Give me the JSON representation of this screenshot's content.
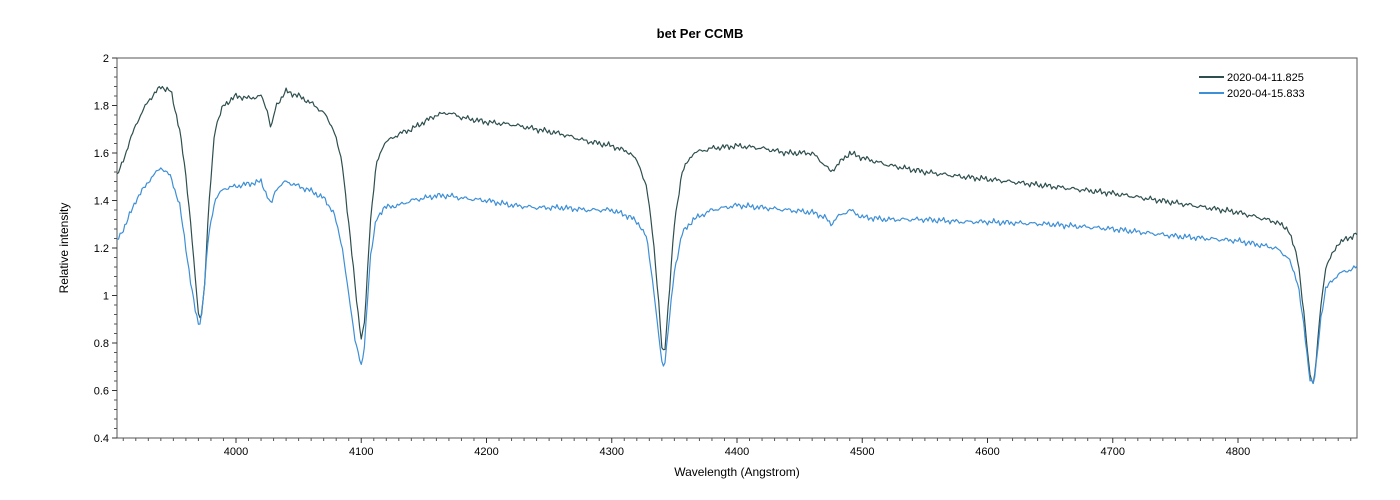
{
  "chart_data": {
    "type": "line",
    "title": "bet Per   CCMB",
    "xlabel": "Wavelength (Angstrom)",
    "ylabel": "Relative intensity",
    "xlim": [
      3905,
      4895
    ],
    "ylim": [
      0.4,
      2.0
    ],
    "x_ticks": [
      4000,
      4100,
      4200,
      4300,
      4400,
      4500,
      4600,
      4700,
      4800
    ],
    "y_ticks": [
      0.4,
      0.6,
      0.8,
      1.0,
      1.2,
      1.4,
      1.6,
      1.8,
      2.0
    ],
    "y_tick_labels": [
      "0.4",
      "0.6",
      "0.8",
      "1",
      "1.2",
      "1.4",
      "1.6",
      "1.8",
      "2"
    ],
    "grid": false,
    "legend_position": "top-right",
    "series": [
      {
        "name": "2020-04-11.825",
        "color": "#2f4f4f",
        "x": [
          3905,
          3912,
          3920,
          3930,
          3940,
          3948,
          3955,
          3960,
          3964,
          3967,
          3970,
          3972,
          3975,
          3978,
          3983,
          3990,
          4000,
          4010,
          4020,
          4025,
          4028,
          4032,
          4040,
          4050,
          4060,
          4070,
          4078,
          4085,
          4090,
          4095,
          4098,
          4100,
          4102,
          4104,
          4107,
          4112,
          4118,
          4130,
          4140,
          4150,
          4160,
          4170,
          4180,
          4200,
          4220,
          4240,
          4260,
          4280,
          4300,
          4315,
          4322,
          4328,
          4333,
          4337,
          4340,
          4342,
          4345,
          4350,
          4356,
          4365,
          4380,
          4400,
          4420,
          4440,
          4460,
          4470,
          4475,
          4480,
          4490,
          4500,
          4520,
          4550,
          4580,
          4600,
          4650,
          4700,
          4750,
          4800,
          4830,
          4840,
          4848,
          4853,
          4857,
          4860,
          4862,
          4866,
          4870,
          4880,
          4895
        ],
        "y": [
          1.5,
          1.6,
          1.72,
          1.82,
          1.88,
          1.86,
          1.7,
          1.5,
          1.3,
          1.1,
          0.92,
          0.9,
          1.05,
          1.35,
          1.7,
          1.8,
          1.84,
          1.83,
          1.84,
          1.78,
          1.7,
          1.8,
          1.86,
          1.84,
          1.81,
          1.77,
          1.7,
          1.55,
          1.3,
          1.05,
          0.9,
          0.82,
          0.85,
          1.0,
          1.3,
          1.55,
          1.64,
          1.68,
          1.7,
          1.73,
          1.76,
          1.77,
          1.75,
          1.73,
          1.72,
          1.7,
          1.68,
          1.65,
          1.63,
          1.6,
          1.55,
          1.45,
          1.25,
          1.0,
          0.78,
          0.75,
          0.95,
          1.3,
          1.52,
          1.6,
          1.62,
          1.63,
          1.62,
          1.6,
          1.6,
          1.55,
          1.52,
          1.55,
          1.6,
          1.58,
          1.55,
          1.52,
          1.5,
          1.49,
          1.46,
          1.43,
          1.39,
          1.35,
          1.31,
          1.28,
          1.15,
          0.9,
          0.68,
          0.63,
          0.7,
          0.95,
          1.12,
          1.22,
          1.26
        ]
      },
      {
        "name": "2020-04-15.833",
        "color": "#3d8fd6",
        "x": [
          3905,
          3912,
          3920,
          3930,
          3940,
          3948,
          3955,
          3960,
          3964,
          3967,
          3970,
          3972,
          3975,
          3978,
          3983,
          3990,
          4000,
          4010,
          4020,
          4025,
          4028,
          4032,
          4040,
          4050,
          4060,
          4070,
          4078,
          4085,
          4090,
          4095,
          4098,
          4100,
          4102,
          4104,
          4107,
          4112,
          4118,
          4130,
          4140,
          4150,
          4160,
          4170,
          4180,
          4200,
          4220,
          4240,
          4260,
          4280,
          4300,
          4315,
          4322,
          4328,
          4333,
          4337,
          4340,
          4342,
          4345,
          4350,
          4356,
          4365,
          4380,
          4400,
          4420,
          4440,
          4460,
          4470,
          4475,
          4480,
          4490,
          4500,
          4520,
          4550,
          4580,
          4600,
          4650,
          4700,
          4750,
          4800,
          4830,
          4840,
          4848,
          4853,
          4857,
          4860,
          4862,
          4866,
          4870,
          4880,
          4895
        ],
        "y": [
          1.23,
          1.3,
          1.4,
          1.48,
          1.54,
          1.5,
          1.38,
          1.2,
          1.05,
          0.95,
          0.88,
          0.9,
          1.05,
          1.25,
          1.4,
          1.45,
          1.46,
          1.47,
          1.48,
          1.42,
          1.38,
          1.45,
          1.48,
          1.46,
          1.44,
          1.41,
          1.35,
          1.2,
          1.0,
          0.82,
          0.75,
          0.7,
          0.75,
          0.9,
          1.15,
          1.32,
          1.37,
          1.38,
          1.4,
          1.41,
          1.42,
          1.42,
          1.41,
          1.4,
          1.38,
          1.37,
          1.37,
          1.36,
          1.36,
          1.33,
          1.3,
          1.24,
          1.05,
          0.85,
          0.72,
          0.7,
          0.85,
          1.1,
          1.26,
          1.32,
          1.36,
          1.38,
          1.37,
          1.36,
          1.35,
          1.33,
          1.3,
          1.33,
          1.36,
          1.33,
          1.32,
          1.32,
          1.31,
          1.31,
          1.3,
          1.28,
          1.25,
          1.23,
          1.2,
          1.16,
          1.05,
          0.85,
          0.66,
          0.63,
          0.68,
          0.9,
          1.03,
          1.09,
          1.12
        ]
      }
    ]
  }
}
